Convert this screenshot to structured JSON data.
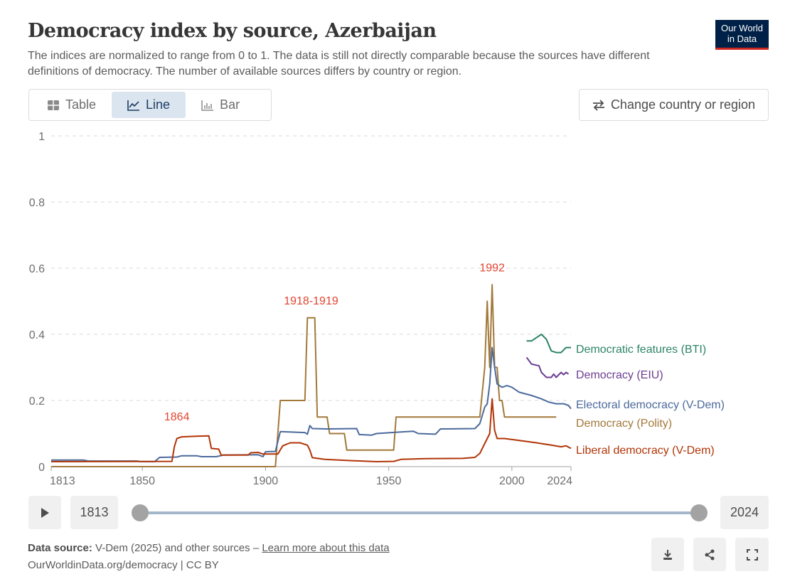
{
  "header": {
    "title": "Democracy index by source, Azerbaijan",
    "subtitle": "The indices are normalized to range from 0 to 1. The data is still not directly comparable because the sources have different definitions of democracy. The number of available sources differs by country or region.",
    "logo_line1": "Our World",
    "logo_line2": "in Data"
  },
  "tabs": [
    {
      "label": "Table",
      "icon": "table-icon"
    },
    {
      "label": "Line",
      "icon": "line-chart-icon",
      "active": true
    },
    {
      "label": "Bar",
      "icon": "bar-chart-icon"
    }
  ],
  "change_button": {
    "label": "Change country or region",
    "icon": "swap-arrows-icon"
  },
  "timeline": {
    "start": "1813",
    "end": "2024",
    "start_fraction": 0,
    "end_fraction": 1
  },
  "footer": {
    "source_label": "Data source:",
    "source_text": "V-Dem (2025) and other sources – ",
    "learn_more": "Learn more about this data",
    "url": "OurWorldinData.org/democracy | CC BY"
  },
  "chart_data": {
    "type": "line",
    "title": "Democracy index by source, Azerbaijan",
    "xlim": [
      1813,
      2024
    ],
    "ylim": [
      0,
      1
    ],
    "xticks": [
      "1813",
      "1850",
      "1900",
      "1950",
      "2000",
      "2024"
    ],
    "yticks": [
      "0",
      "0.2",
      "0.4",
      "0.6",
      "0.8",
      "1"
    ],
    "grid": true,
    "annotations": [
      {
        "text": "1864",
        "x": 1864,
        "y": 0.14
      },
      {
        "text": "1918-1919",
        "x": 1918.5,
        "y": 0.49
      },
      {
        "text": "1992",
        "x": 1992,
        "y": 0.59
      }
    ],
    "series": [
      {
        "name": "Democracy (Polity)",
        "color": "#a2793a",
        "points": [
          [
            1813,
            0
          ],
          [
            1904,
            0
          ],
          [
            1906,
            0.2
          ],
          [
            1916,
            0.2
          ],
          [
            1917,
            0.45
          ],
          [
            1920,
            0.45
          ],
          [
            1921,
            0.15
          ],
          [
            1925,
            0.15
          ],
          [
            1926,
            0.1
          ],
          [
            1932,
            0.1
          ],
          [
            1933,
            0.05
          ],
          [
            1952,
            0.05
          ],
          [
            1953,
            0.15
          ],
          [
            1987,
            0.15
          ],
          [
            1989,
            0.3
          ],
          [
            1990,
            0.5
          ],
          [
            1991,
            0.3
          ],
          [
            1992,
            0.55
          ],
          [
            1993,
            0.3
          ],
          [
            1994,
            0.3
          ],
          [
            1995,
            0.2
          ],
          [
            1996,
            0.2
          ],
          [
            1997,
            0.15
          ],
          [
            2018,
            0.15
          ]
        ]
      },
      {
        "name": "Electoral democracy (V-Dem)",
        "color": "#4c6a9c",
        "points": [
          [
            1813,
            0.02
          ],
          [
            1826,
            0.02
          ],
          [
            1828,
            0.017
          ],
          [
            1848,
            0.017
          ],
          [
            1849,
            0.015
          ],
          [
            1855,
            0.015
          ],
          [
            1857,
            0.028
          ],
          [
            1864,
            0.029
          ],
          [
            1866,
            0.033
          ],
          [
            1872,
            0.033
          ],
          [
            1874,
            0.03
          ],
          [
            1880,
            0.03
          ],
          [
            1883,
            0.035
          ],
          [
            1897,
            0.036
          ],
          [
            1899,
            0.03
          ],
          [
            1900,
            0.045
          ],
          [
            1904,
            0.046
          ],
          [
            1906,
            0.106
          ],
          [
            1916,
            0.103
          ],
          [
            1917,
            0.098
          ],
          [
            1918,
            0.124
          ],
          [
            1919,
            0.115
          ],
          [
            1925,
            0.114
          ],
          [
            1937,
            0.115
          ],
          [
            1938,
            0.097
          ],
          [
            1943,
            0.095
          ],
          [
            1945,
            0.1
          ],
          [
            1955,
            0.105
          ],
          [
            1960,
            0.107
          ],
          [
            1962,
            0.1
          ],
          [
            1969,
            0.098
          ],
          [
            1971,
            0.114
          ],
          [
            1985,
            0.115
          ],
          [
            1987,
            0.13
          ],
          [
            1989,
            0.18
          ],
          [
            1990,
            0.19
          ],
          [
            1991,
            0.25
          ],
          [
            1992,
            0.36
          ],
          [
            1993,
            0.3
          ],
          [
            1994,
            0.25
          ],
          [
            1996,
            0.24
          ],
          [
            1998,
            0.245
          ],
          [
            2000,
            0.24
          ],
          [
            2003,
            0.225
          ],
          [
            2008,
            0.215
          ],
          [
            2012,
            0.205
          ],
          [
            2015,
            0.195
          ],
          [
            2018,
            0.19
          ],
          [
            2021,
            0.19
          ],
          [
            2023,
            0.185
          ],
          [
            2024,
            0.175
          ]
        ]
      },
      {
        "name": "Liberal democracy (V-Dem)",
        "color": "#b13507",
        "points": [
          [
            1813,
            0.015
          ],
          [
            1862,
            0.016
          ],
          [
            1863,
            0.06
          ],
          [
            1864,
            0.085
          ],
          [
            1866,
            0.09
          ],
          [
            1872,
            0.092
          ],
          [
            1877,
            0.093
          ],
          [
            1878,
            0.055
          ],
          [
            1881,
            0.053
          ],
          [
            1882,
            0.035
          ],
          [
            1893,
            0.035
          ],
          [
            1894,
            0.042
          ],
          [
            1897,
            0.043
          ],
          [
            1899,
            0.038
          ],
          [
            1905,
            0.038
          ],
          [
            1907,
            0.063
          ],
          [
            1910,
            0.072
          ],
          [
            1914,
            0.072
          ],
          [
            1917,
            0.065
          ],
          [
            1918,
            0.05
          ],
          [
            1919,
            0.027
          ],
          [
            1924,
            0.022
          ],
          [
            1935,
            0.018
          ],
          [
            1945,
            0.015
          ],
          [
            1952,
            0.016
          ],
          [
            1955,
            0.022
          ],
          [
            1965,
            0.024
          ],
          [
            1980,
            0.025
          ],
          [
            1985,
            0.028
          ],
          [
            1987,
            0.04
          ],
          [
            1989,
            0.07
          ],
          [
            1991,
            0.1
          ],
          [
            1992,
            0.205
          ],
          [
            1993,
            0.11
          ],
          [
            1994,
            0.085
          ],
          [
            1997,
            0.085
          ],
          [
            2002,
            0.08
          ],
          [
            2010,
            0.072
          ],
          [
            2016,
            0.065
          ],
          [
            2020,
            0.06
          ],
          [
            2022,
            0.063
          ],
          [
            2024,
            0.055
          ]
        ]
      },
      {
        "name": "Democratic features (BTI)",
        "color": "#2c8465",
        "points": [
          [
            2006,
            0.38
          ],
          [
            2008,
            0.38
          ],
          [
            2010,
            0.39
          ],
          [
            2012,
            0.4
          ],
          [
            2014,
            0.385
          ],
          [
            2016,
            0.35
          ],
          [
            2018,
            0.345
          ],
          [
            2020,
            0.345
          ],
          [
            2022,
            0.36
          ],
          [
            2024,
            0.36
          ]
        ]
      },
      {
        "name": "Democracy (EIU)",
        "color": "#6d3e91",
        "points": [
          [
            2006,
            0.33
          ],
          [
            2008,
            0.31
          ],
          [
            2011,
            0.305
          ],
          [
            2012,
            0.285
          ],
          [
            2014,
            0.27
          ],
          [
            2016,
            0.27
          ],
          [
            2017,
            0.28
          ],
          [
            2018,
            0.27
          ],
          [
            2020,
            0.285
          ],
          [
            2021,
            0.278
          ],
          [
            2022,
            0.285
          ],
          [
            2023,
            0.28
          ]
        ]
      }
    ],
    "legend": [
      {
        "name": "Democratic features (BTI)",
        "color": "#2c8465"
      },
      {
        "name": "Democracy (EIU)",
        "color": "#6d3e91"
      },
      {
        "name": "Electoral democracy (V-Dem)",
        "color": "#4c6a9c"
      },
      {
        "name": "Democracy (Polity)",
        "color": "#a2793a"
      },
      {
        "name": "Liberal democracy (V-Dem)",
        "color": "#b13507"
      }
    ],
    "legend_placement": "right"
  }
}
